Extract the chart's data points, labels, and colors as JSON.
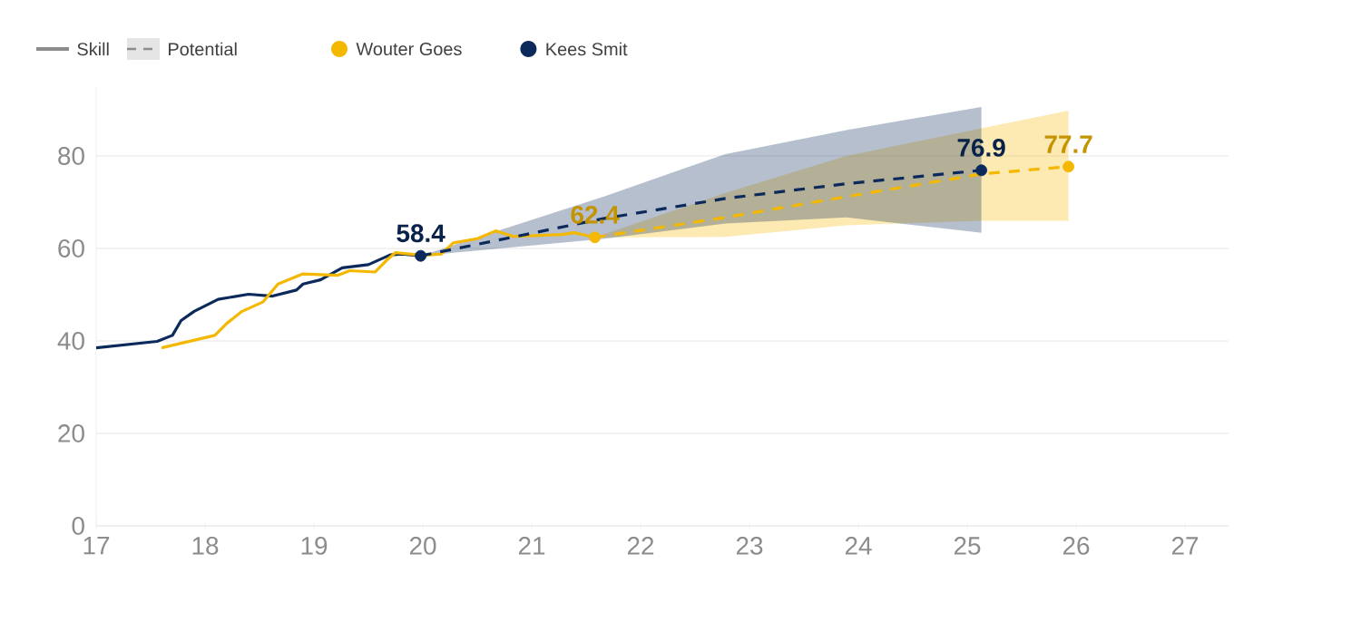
{
  "chart_data": {
    "type": "line",
    "annotations": [
      "Skill",
      "Potential"
    ],
    "xlim": [
      17,
      27.4
    ],
    "xticks": [
      17,
      18,
      19,
      20,
      21,
      22,
      23,
      24,
      25,
      26,
      27
    ],
    "ylim": [
      0,
      95
    ],
    "yticks": [
      0,
      20,
      40,
      60,
      80
    ],
    "grid": "y",
    "legend": "top left",
    "series": [
      {
        "color": "#0b2a5b",
        "line_style": "solid",
        "x": [
          17.0,
          17.56,
          17.7,
          17.78,
          17.9,
          18.12,
          18.4,
          18.62,
          18.84,
          18.9,
          19.06,
          19.26,
          19.5,
          19.7,
          19.81,
          19.98
        ],
        "values": [
          38.5,
          39.9,
          41.2,
          44.4,
          46.4,
          49.0,
          50.1,
          49.7,
          51.0,
          52.3,
          53.2,
          55.8,
          56.5,
          58.6,
          58.8,
          58.4
        ]
      },
      {
        "color": "#f5b800",
        "line_style": "solid",
        "x": [
          17.6,
          18.09,
          18.2,
          18.34,
          18.53,
          18.67,
          18.9,
          19.22,
          19.33,
          19.56,
          19.67,
          19.75,
          20.0,
          20.17,
          20.28,
          20.5,
          20.67,
          20.83,
          21.28,
          21.39,
          21.58
        ],
        "values": [
          38.5,
          41.2,
          43.8,
          46.4,
          48.4,
          52.3,
          54.5,
          54.2,
          55.2,
          54.9,
          57.5,
          59.1,
          58.5,
          58.8,
          61.2,
          62.1,
          63.8,
          62.6,
          63.0,
          63.4,
          62.4
        ]
      },
      {
        "color": "#f5b800",
        "line_style": "dashed",
        "x": [
          21.58,
          22.78,
          23.89,
          25.13,
          25.93
        ],
        "values": [
          62.4,
          66.7,
          71.2,
          76.1,
          77.7
        ],
        "lower": [
          62.4,
          62.5,
          65.0,
          66.0,
          66.0
        ],
        "upper": [
          62.4,
          72.0,
          80.0,
          86.0,
          89.8
        ]
      },
      {
        "color": "#0b2a5b",
        "line_style": "dashed",
        "x": [
          19.98,
          21.67,
          22.78,
          23.89,
          25.13
        ],
        "values": [
          58.4,
          66.5,
          70.8,
          74.0,
          76.9
        ],
        "lower": [
          58.4,
          62.1,
          65.4,
          66.7,
          63.4
        ],
        "upper": [
          58.4,
          71.3,
          80.4,
          85.6,
          90.6
        ]
      },
      {
        "type": "scatter",
        "name": "Wouter Goes",
        "color": "#f5b800",
        "marker": "circle",
        "x": [
          21.58,
          25.93
        ],
        "values": [
          62.4,
          77.7
        ],
        "value_labels": [
          "62.4",
          "77.7"
        ]
      },
      {
        "type": "scatter",
        "name": "Kees Smit",
        "color": "#0b2a5b",
        "marker": "circle",
        "x": [
          19.98,
          25.13
        ],
        "values": [
          58.4,
          76.9
        ],
        "value_labels": [
          "58.4",
          "76.9"
        ]
      }
    ]
  }
}
